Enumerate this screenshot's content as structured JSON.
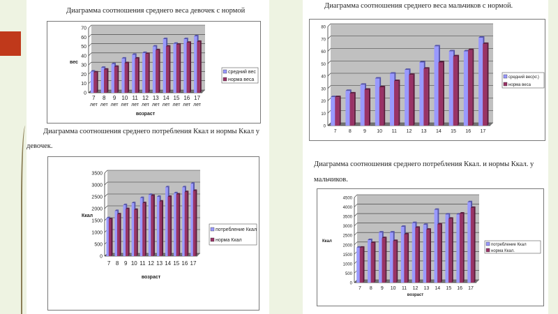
{
  "captions": {
    "girls_weight": "Диаграмма соотношения среднего веса девочек с нормой",
    "girls_kcal_1": "Диаграмма соотношения среднего потребления Ккал и нормы Ккал у",
    "girls_kcal_2": "девочек.",
    "boys_weight": "Диаграмма соотношения среднего веса мальчиков с нормой.",
    "boys_kcal_1": "Диаграмма соотношения среднего потребления Ккал. и нормы Ккал. у",
    "boys_kcal_2": "мальчиков."
  },
  "colors": {
    "avg": "#9999ff",
    "norm": "#993366",
    "plot_bg": "#c0c0c0"
  },
  "chart_data": [
    {
      "type": "bar",
      "title": "Диаграмма соотношения среднего веса девочек с нормой",
      "ylabel": "вес",
      "xlabel": "возраст",
      "categories": [
        "7",
        "8",
        "9",
        "10",
        "11",
        "12",
        "13",
        "14",
        "15",
        "16",
        "17"
      ],
      "category_suffix": "лет",
      "ylim": [
        0,
        70
      ],
      "yticks": [
        0,
        10,
        20,
        30,
        40,
        50,
        60,
        70
      ],
      "legend": "right",
      "series": [
        {
          "name": "средний вес",
          "values": [
            23,
            27,
            31,
            37,
            41,
            43,
            50,
            58,
            53,
            58,
            61
          ]
        },
        {
          "name": "норма веса",
          "values": [
            22,
            25,
            28,
            32,
            37,
            42,
            46,
            50,
            52,
            54,
            55
          ]
        }
      ]
    },
    {
      "type": "bar",
      "title": "Диаграмма соотношения среднего веса мальчиков с нормой.",
      "ylabel": "",
      "xlabel": "",
      "categories": [
        "7",
        "8",
        "9",
        "10",
        "11",
        "12",
        "13",
        "14",
        "15",
        "16",
        "17"
      ],
      "category_suffix": "",
      "ylim": [
        0,
        80
      ],
      "yticks": [
        0,
        10,
        20,
        30,
        40,
        50,
        60,
        70,
        80
      ],
      "legend": "right",
      "series": [
        {
          "name": "средний вес(кг.)",
          "values": [
            23,
            28,
            33,
            38,
            42,
            45,
            51,
            64,
            60,
            60,
            71
          ]
        },
        {
          "name": "норма веса",
          "values": [
            23,
            26,
            29,
            31,
            36,
            41,
            46,
            51,
            56,
            61,
            66
          ]
        }
      ]
    },
    {
      "type": "bar",
      "title": "Диаграмма соотношения среднего потребления Ккал и нормы Ккал у девочек.",
      "ylabel": "Ккал",
      "xlabel": "возраст",
      "categories": [
        "7",
        "8",
        "9",
        "10",
        "11",
        "12",
        "13",
        "14",
        "15",
        "16",
        "17"
      ],
      "category_suffix": "",
      "ylim": [
        0,
        3500
      ],
      "yticks": [
        0,
        500,
        1000,
        1500,
        2000,
        2500,
        3000,
        3500
      ],
      "legend": "right",
      "series": [
        {
          "name": "потребление Ккал",
          "values": [
            1600,
            1900,
            2150,
            2230,
            2450,
            2580,
            2500,
            2900,
            2650,
            2900,
            3050
          ]
        },
        {
          "name": "норма Ккал",
          "values": [
            1550,
            1760,
            1980,
            1950,
            2230,
            2540,
            2300,
            2500,
            2600,
            2700,
            2750
          ]
        }
      ]
    },
    {
      "type": "bar",
      "title": "Диаграмма соотношения среднего потребления Ккал. и нормы Ккал. у мальчиков.",
      "ylabel": "Ккал",
      "xlabel": "возраст",
      "categories": [
        "7",
        "8",
        "9",
        "10",
        "11",
        "12",
        "13",
        "14",
        "15",
        "16",
        "17"
      ],
      "category_suffix": "",
      "ylim": [
        0,
        4500
      ],
      "yticks": [
        0,
        500,
        1000,
        1500,
        2000,
        2500,
        3000,
        3500,
        4000,
        4500
      ],
      "legend": "right",
      "series": [
        {
          "name": "потребление Ккал",
          "values": [
            1850,
            2250,
            2650,
            2650,
            2950,
            3150,
            3050,
            3850,
            3600,
            3600,
            4250
          ]
        },
        {
          "name": "норма Ккал.",
          "values": [
            1850,
            2100,
            2350,
            2200,
            2550,
            2900,
            2800,
            3080,
            3380,
            3650,
            3950
          ]
        }
      ]
    }
  ]
}
